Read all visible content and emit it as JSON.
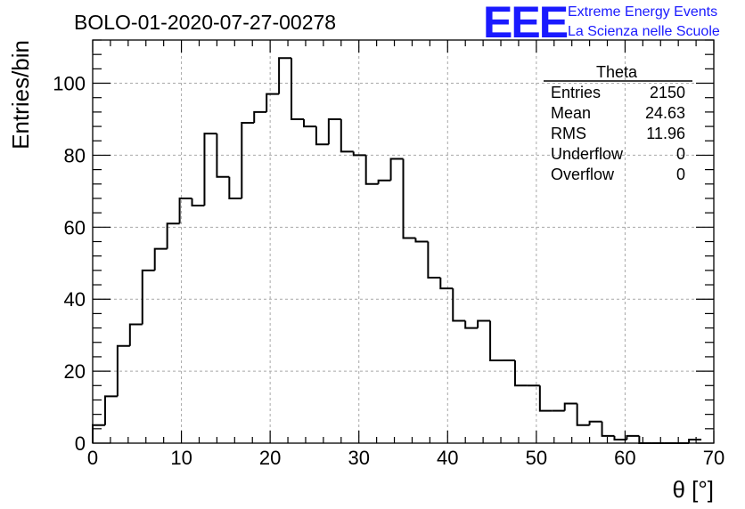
{
  "chart_data": {
    "type": "bar",
    "subtype": "histogram",
    "title": "BOLO-01-2020-07-27-00278",
    "xlabel": "θ [°]",
    "ylabel": "Entries/bin",
    "xlim": [
      0,
      70
    ],
    "ylim": [
      0,
      112
    ],
    "grid": true,
    "bin_width": 1.4,
    "x_ticks": [
      "0",
      "10",
      "20",
      "30",
      "40",
      "50",
      "60",
      "70"
    ],
    "y_ticks": [
      "0",
      "20",
      "40",
      "60",
      "80",
      "100"
    ],
    "x_tick_values": [
      0,
      10,
      20,
      30,
      40,
      50,
      60,
      70
    ],
    "y_tick_values": [
      0,
      20,
      40,
      60,
      80,
      100
    ],
    "values": [
      5,
      13,
      27,
      33,
      48,
      54,
      61,
      68,
      66,
      86,
      74,
      68,
      89,
      92,
      97,
      107,
      90,
      88,
      83,
      90,
      81,
      80,
      72,
      73,
      79,
      57,
      56,
      46,
      43,
      34,
      32,
      34,
      23,
      23,
      16,
      16,
      9,
      9,
      11,
      5,
      6,
      2,
      1,
      2,
      0,
      0,
      0,
      0,
      1
    ],
    "stats_box": {
      "title": "Theta",
      "placement": "top-right",
      "rows": [
        {
          "label": "Entries",
          "value": "2150"
        },
        {
          "label": "Mean",
          "value": "24.63"
        },
        {
          "label": "RMS",
          "value": "11.96"
        },
        {
          "label": "Underflow",
          "value": "0"
        },
        {
          "label": "Overflow",
          "value": "0"
        }
      ]
    }
  },
  "logo": {
    "mark": "EEE",
    "line1": "Extreme Energy Events",
    "line2": "La Scienza nelle Scuole",
    "color": "#1a1aff"
  }
}
